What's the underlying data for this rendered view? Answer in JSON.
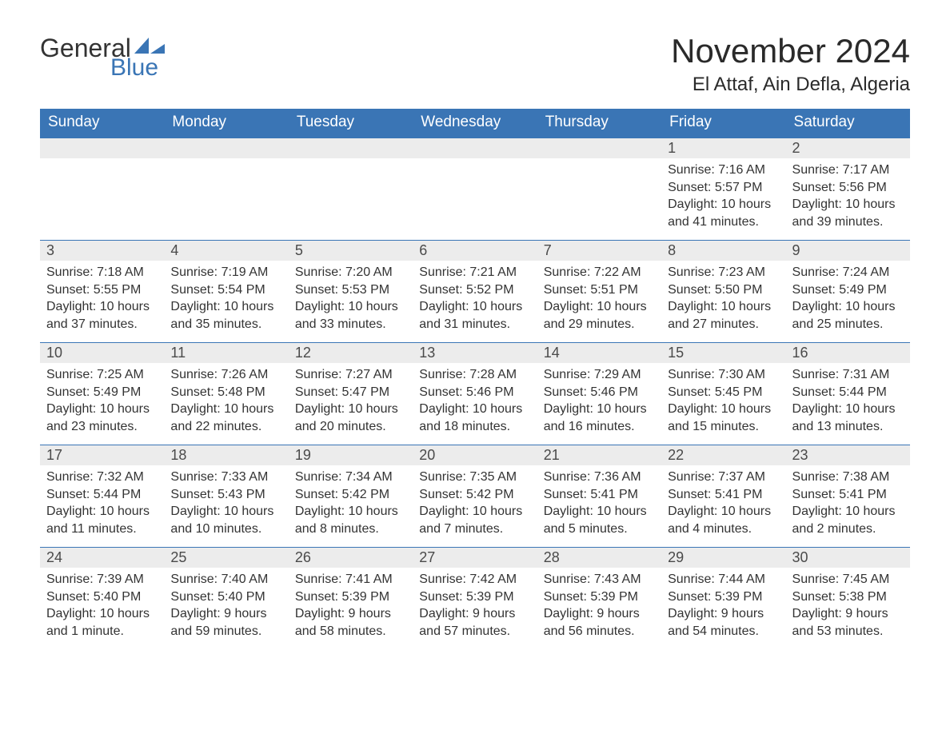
{
  "logo": {
    "word1": "General",
    "word2": "Blue",
    "sail_color": "#3a75b5"
  },
  "title": "November 2024",
  "location": "El Attaf, Ain Defla, Algeria",
  "colors": {
    "header_bg": "#3a75b5",
    "header_text": "#ffffff",
    "daynum_bg": "#ececec",
    "daynum_border": "#3a75b5",
    "body_text": "#333333",
    "page_bg": "#ffffff"
  },
  "typography": {
    "title_fontsize": 42,
    "location_fontsize": 24,
    "weekday_header_fontsize": 19,
    "daynum_fontsize": 18,
    "body_fontsize": 16
  },
  "weekdays": [
    "Sunday",
    "Monday",
    "Tuesday",
    "Wednesday",
    "Thursday",
    "Friday",
    "Saturday"
  ],
  "weeks": [
    [
      null,
      null,
      null,
      null,
      null,
      {
        "day": "1",
        "sunrise": "Sunrise: 7:16 AM",
        "sunset": "Sunset: 5:57 PM",
        "daylight": "Daylight: 10 hours and 41 minutes."
      },
      {
        "day": "2",
        "sunrise": "Sunrise: 7:17 AM",
        "sunset": "Sunset: 5:56 PM",
        "daylight": "Daylight: 10 hours and 39 minutes."
      }
    ],
    [
      {
        "day": "3",
        "sunrise": "Sunrise: 7:18 AM",
        "sunset": "Sunset: 5:55 PM",
        "daylight": "Daylight: 10 hours and 37 minutes."
      },
      {
        "day": "4",
        "sunrise": "Sunrise: 7:19 AM",
        "sunset": "Sunset: 5:54 PM",
        "daylight": "Daylight: 10 hours and 35 minutes."
      },
      {
        "day": "5",
        "sunrise": "Sunrise: 7:20 AM",
        "sunset": "Sunset: 5:53 PM",
        "daylight": "Daylight: 10 hours and 33 minutes."
      },
      {
        "day": "6",
        "sunrise": "Sunrise: 7:21 AM",
        "sunset": "Sunset: 5:52 PM",
        "daylight": "Daylight: 10 hours and 31 minutes."
      },
      {
        "day": "7",
        "sunrise": "Sunrise: 7:22 AM",
        "sunset": "Sunset: 5:51 PM",
        "daylight": "Daylight: 10 hours and 29 minutes."
      },
      {
        "day": "8",
        "sunrise": "Sunrise: 7:23 AM",
        "sunset": "Sunset: 5:50 PM",
        "daylight": "Daylight: 10 hours and 27 minutes."
      },
      {
        "day": "9",
        "sunrise": "Sunrise: 7:24 AM",
        "sunset": "Sunset: 5:49 PM",
        "daylight": "Daylight: 10 hours and 25 minutes."
      }
    ],
    [
      {
        "day": "10",
        "sunrise": "Sunrise: 7:25 AM",
        "sunset": "Sunset: 5:49 PM",
        "daylight": "Daylight: 10 hours and 23 minutes."
      },
      {
        "day": "11",
        "sunrise": "Sunrise: 7:26 AM",
        "sunset": "Sunset: 5:48 PM",
        "daylight": "Daylight: 10 hours and 22 minutes."
      },
      {
        "day": "12",
        "sunrise": "Sunrise: 7:27 AM",
        "sunset": "Sunset: 5:47 PM",
        "daylight": "Daylight: 10 hours and 20 minutes."
      },
      {
        "day": "13",
        "sunrise": "Sunrise: 7:28 AM",
        "sunset": "Sunset: 5:46 PM",
        "daylight": "Daylight: 10 hours and 18 minutes."
      },
      {
        "day": "14",
        "sunrise": "Sunrise: 7:29 AM",
        "sunset": "Sunset: 5:46 PM",
        "daylight": "Daylight: 10 hours and 16 minutes."
      },
      {
        "day": "15",
        "sunrise": "Sunrise: 7:30 AM",
        "sunset": "Sunset: 5:45 PM",
        "daylight": "Daylight: 10 hours and 15 minutes."
      },
      {
        "day": "16",
        "sunrise": "Sunrise: 7:31 AM",
        "sunset": "Sunset: 5:44 PM",
        "daylight": "Daylight: 10 hours and 13 minutes."
      }
    ],
    [
      {
        "day": "17",
        "sunrise": "Sunrise: 7:32 AM",
        "sunset": "Sunset: 5:44 PM",
        "daylight": "Daylight: 10 hours and 11 minutes."
      },
      {
        "day": "18",
        "sunrise": "Sunrise: 7:33 AM",
        "sunset": "Sunset: 5:43 PM",
        "daylight": "Daylight: 10 hours and 10 minutes."
      },
      {
        "day": "19",
        "sunrise": "Sunrise: 7:34 AM",
        "sunset": "Sunset: 5:42 PM",
        "daylight": "Daylight: 10 hours and 8 minutes."
      },
      {
        "day": "20",
        "sunrise": "Sunrise: 7:35 AM",
        "sunset": "Sunset: 5:42 PM",
        "daylight": "Daylight: 10 hours and 7 minutes."
      },
      {
        "day": "21",
        "sunrise": "Sunrise: 7:36 AM",
        "sunset": "Sunset: 5:41 PM",
        "daylight": "Daylight: 10 hours and 5 minutes."
      },
      {
        "day": "22",
        "sunrise": "Sunrise: 7:37 AM",
        "sunset": "Sunset: 5:41 PM",
        "daylight": "Daylight: 10 hours and 4 minutes."
      },
      {
        "day": "23",
        "sunrise": "Sunrise: 7:38 AM",
        "sunset": "Sunset: 5:41 PM",
        "daylight": "Daylight: 10 hours and 2 minutes."
      }
    ],
    [
      {
        "day": "24",
        "sunrise": "Sunrise: 7:39 AM",
        "sunset": "Sunset: 5:40 PM",
        "daylight": "Daylight: 10 hours and 1 minute."
      },
      {
        "day": "25",
        "sunrise": "Sunrise: 7:40 AM",
        "sunset": "Sunset: 5:40 PM",
        "daylight": "Daylight: 9 hours and 59 minutes."
      },
      {
        "day": "26",
        "sunrise": "Sunrise: 7:41 AM",
        "sunset": "Sunset: 5:39 PM",
        "daylight": "Daylight: 9 hours and 58 minutes."
      },
      {
        "day": "27",
        "sunrise": "Sunrise: 7:42 AM",
        "sunset": "Sunset: 5:39 PM",
        "daylight": "Daylight: 9 hours and 57 minutes."
      },
      {
        "day": "28",
        "sunrise": "Sunrise: 7:43 AM",
        "sunset": "Sunset: 5:39 PM",
        "daylight": "Daylight: 9 hours and 56 minutes."
      },
      {
        "day": "29",
        "sunrise": "Sunrise: 7:44 AM",
        "sunset": "Sunset: 5:39 PM",
        "daylight": "Daylight: 9 hours and 54 minutes."
      },
      {
        "day": "30",
        "sunrise": "Sunrise: 7:45 AM",
        "sunset": "Sunset: 5:38 PM",
        "daylight": "Daylight: 9 hours and 53 minutes."
      }
    ]
  ]
}
